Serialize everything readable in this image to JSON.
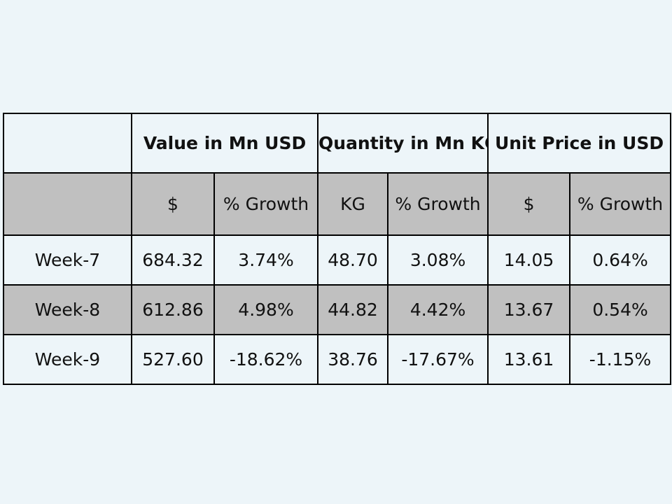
{
  "table": {
    "header": {
      "corner": "",
      "groups": [
        "Value in Mn USD",
        "Quantity in Mn KG",
        "Unit Price in USD"
      ]
    },
    "subheader": {
      "corner": "",
      "cols": [
        "$",
        "% Growth",
        "KG",
        "% Growth",
        "$",
        "% Growth"
      ]
    },
    "rows": [
      {
        "label": "Week-7",
        "cells": [
          "684.32",
          "3.74%",
          "48.70",
          "3.08%",
          "14.05",
          "0.64%"
        ]
      },
      {
        "label": "Week-8",
        "cells": [
          "612.86",
          "4.98%",
          "44.82",
          "4.42%",
          "13.67",
          "0.54%"
        ]
      },
      {
        "label": "Week-9",
        "cells": [
          "527.60",
          "-18.62%",
          "38.76",
          "-17.67%",
          "13.61",
          "-1.15%"
        ]
      }
    ]
  }
}
